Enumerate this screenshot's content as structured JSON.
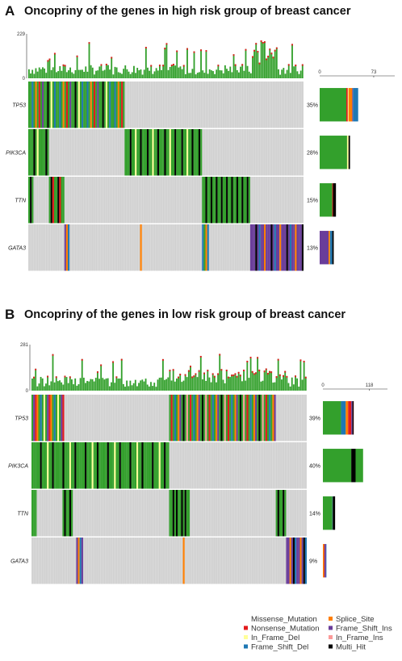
{
  "panels": [
    {
      "letter": "A",
      "title": "Oncopriny of the genes in high risk group of breast cancer"
    },
    {
      "letter": "B",
      "title": "Oncopriny of the genes in low risk group of breast cancer"
    }
  ],
  "chart_data": [
    {
      "type": "oncoprint",
      "panel": "A",
      "title": "Oncopriny of the genes in high risk group of breast cancer",
      "samples": 160,
      "tmb_axis": {
        "min": 0,
        "max": 229,
        "tick_labels": [
          "229",
          "0"
        ]
      },
      "gene_bar_axis": {
        "min": 0,
        "max": 73,
        "tick_labels": [
          "0",
          "73"
        ]
      },
      "genes": [
        {
          "name": "TP53",
          "percent": "35%",
          "runs": [
            {
              "start": 0,
              "length": 56,
              "pattern": [
                "Missense_Mutation",
                "Missense_Mutation",
                "Frame_Shift_Del",
                "Missense_Mutation",
                "Splice_Site",
                "Missense_Mutation",
                "Nonsense_Mutation",
                "Missense_Mutation",
                "Frame_Shift_Ins",
                "Missense_Mutation",
                "Missense_Mutation",
                "Multi_Hit",
                "Missense_Mutation",
                "In_Frame_Del",
                "Missense_Mutation",
                "Frame_Shift_Del"
              ]
            }
          ],
          "side_bar": [
            {
              "type": "Missense_Mutation",
              "count": 36
            },
            {
              "type": "Nonsense_Mutation",
              "count": 2
            },
            {
              "type": "In_Frame_Del",
              "count": 1
            },
            {
              "type": "Splice_Site",
              "count": 5
            },
            {
              "type": "Frame_Shift_Ins",
              "count": 1
            },
            {
              "type": "Frame_Shift_Del",
              "count": 7
            }
          ]
        },
        {
          "name": "PIK3CA",
          "percent": "28%",
          "runs": [
            {
              "start": 0,
              "length": 12,
              "pattern": [
                "Missense_Mutation",
                "Missense_Mutation",
                "Missense_Mutation",
                "Multi_Hit",
                "Missense_Mutation",
                "In_Frame_Del",
                "Missense_Mutation"
              ]
            },
            {
              "start": 56,
              "length": 45,
              "pattern": [
                "Missense_Mutation",
                "Missense_Mutation",
                "Missense_Mutation",
                "Multi_Hit",
                "Missense_Mutation",
                "Missense_Mutation",
                "In_Frame_Del",
                "Missense_Mutation",
                "Missense_Mutation",
                "Multi_Hit"
              ]
            }
          ],
          "side_bar": [
            {
              "type": "Missense_Mutation",
              "count": 37
            },
            {
              "type": "In_Frame_Del",
              "count": 2
            },
            {
              "type": "Multi_Hit",
              "count": 2
            }
          ]
        },
        {
          "name": "TTN",
          "percent": "15%",
          "runs": [
            {
              "start": 0,
              "length": 3,
              "pattern": [
                "Missense_Mutation",
                "Multi_Hit",
                "Missense_Mutation"
              ]
            },
            {
              "start": 12,
              "length": 9,
              "pattern": [
                "Missense_Mutation",
                "Multi_Hit",
                "Nonsense_Mutation",
                "Missense_Mutation"
              ]
            },
            {
              "start": 101,
              "length": 28,
              "pattern": [
                "Missense_Mutation",
                "Missense_Mutation",
                "Multi_Hit",
                "Missense_Mutation",
                "Missense_Mutation",
                "Multi_Hit"
              ]
            }
          ],
          "side_bar": [
            {
              "type": "Missense_Mutation",
              "count": 17
            },
            {
              "type": "Nonsense_Mutation",
              "count": 1
            },
            {
              "type": "Multi_Hit",
              "count": 4
            }
          ]
        },
        {
          "name": "GATA3",
          "percent": "13%",
          "runs": [
            {
              "start": 21,
              "length": 3,
              "pattern": [
                "Frame_Shift_Ins",
                "Splice_Site",
                "Frame_Shift_Del"
              ]
            },
            {
              "start": 65,
              "length": 1,
              "pattern": [
                "Splice_Site"
              ]
            },
            {
              "start": 101,
              "length": 4,
              "pattern": [
                "Frame_Shift_Del",
                "Missense_Mutation",
                "Splice_Site"
              ]
            },
            {
              "start": 129,
              "length": 31,
              "pattern": [
                "Frame_Shift_Ins",
                "Frame_Shift_Ins",
                "Frame_Shift_Ins",
                "Multi_Hit",
                "Frame_Shift_Ins",
                "Frame_Shift_Del",
                "Frame_Shift_Ins",
                "Frame_Shift_Ins",
                "Splice_Site"
              ]
            }
          ],
          "side_bar": [
            {
              "type": "Frame_Shift_Ins",
              "count": 12
            },
            {
              "type": "Splice_Site",
              "count": 2
            },
            {
              "type": "Frame_Shift_Del",
              "count": 3
            },
            {
              "type": "Multi_Hit",
              "count": 2
            }
          ]
        }
      ]
    },
    {
      "type": "oncoprint",
      "panel": "B",
      "title": "Oncopriny of the genes in low risk group of breast cancer",
      "samples": 160,
      "tmb_axis": {
        "min": 0,
        "max": 281,
        "tick_labels": [
          "281",
          "0"
        ]
      },
      "gene_bar_axis": {
        "min": 0,
        "max": 118,
        "tick_labels": [
          "0",
          "118"
        ]
      },
      "genes": [
        {
          "name": "TP53",
          "percent": "39%",
          "runs": [
            {
              "start": 0,
              "length": 19,
              "pattern": [
                "Missense_Mutation",
                "Frame_Shift_Ins",
                "Nonsense_Mutation",
                "Splice_Site",
                "Missense_Mutation",
                "Frame_Shift_Del",
                "Missense_Mutation",
                "In_Frame_Del"
              ]
            },
            {
              "start": 80,
              "length": 62,
              "pattern": [
                "Missense_Mutation",
                "Nonsense_Mutation",
                "Missense_Mutation",
                "Frame_Shift_Del",
                "Missense_Mutation",
                "Splice_Site",
                "Frame_Shift_Ins",
                "Missense_Mutation",
                "Multi_Hit",
                "Missense_Mutation",
                "In_Frame_Ins"
              ]
            }
          ],
          "side_bar": [
            {
              "type": "Missense_Mutation",
              "count": 46
            },
            {
              "type": "Frame_Shift_Del",
              "count": 12
            },
            {
              "type": "Splice_Site",
              "count": 6
            },
            {
              "type": "Nonsense_Mutation",
              "count": 8
            },
            {
              "type": "Frame_Shift_Ins",
              "count": 3
            },
            {
              "type": "Multi_Hit",
              "count": 3
            },
            {
              "type": "In_Frame_Ins",
              "count": 1
            }
          ]
        },
        {
          "name": "PIK3CA",
          "percent": "40%",
          "runs": [
            {
              "start": 0,
              "length": 80,
              "pattern": [
                "Missense_Mutation",
                "Missense_Mutation",
                "Missense_Mutation",
                "Missense_Mutation",
                "Missense_Mutation",
                "Multi_Hit",
                "Missense_Mutation",
                "Missense_Mutation",
                "Missense_Mutation",
                "In_Frame_Del",
                "Missense_Mutation",
                "Missense_Mutation",
                "Multi_Hit"
              ]
            }
          ],
          "side_bar": [
            {
              "type": "Missense_Mutation",
              "count": 72
            },
            {
              "type": "Multi_Hit",
              "count": 11
            },
            {
              "type": "Missense_Mutation",
              "count": 19
            }
          ]
        },
        {
          "name": "TTN",
          "percent": "14%",
          "runs": [
            {
              "start": 0,
              "length": 3,
              "pattern": [
                "Missense_Mutation"
              ]
            },
            {
              "start": 18,
              "length": 6,
              "pattern": [
                "Missense_Mutation",
                "Multi_Hit",
                "Missense_Mutation"
              ]
            },
            {
              "start": 80,
              "length": 12,
              "pattern": [
                "Missense_Mutation",
                "Missense_Mutation",
                "Multi_Hit",
                "Missense_Mutation",
                "Multi_Hit"
              ]
            },
            {
              "start": 142,
              "length": 6,
              "pattern": [
                "Missense_Mutation",
                "Multi_Hit",
                "Missense_Mutation"
              ]
            }
          ],
          "side_bar": [
            {
              "type": "Missense_Mutation",
              "count": 24
            },
            {
              "type": "Frame_Shift_Del",
              "count": 1
            },
            {
              "type": "Multi_Hit",
              "count": 6
            }
          ]
        },
        {
          "name": "GATA3",
          "percent": "9%",
          "runs": [
            {
              "start": 26,
              "length": 4,
              "pattern": [
                "Frame_Shift_Ins",
                "Splice_Site",
                "Frame_Shift_Del",
                "Frame_Shift_Ins"
              ]
            },
            {
              "start": 88,
              "length": 1,
              "pattern": [
                "Splice_Site"
              ]
            },
            {
              "start": 148,
              "length": 12,
              "pattern": [
                "Frame_Shift_Ins",
                "Frame_Shift_Ins",
                "Splice_Site",
                "Frame_Shift_Ins",
                "Multi_Hit",
                "Frame_Shift_Del"
              ]
            }
          ],
          "side_bar": [
            {
              "type": "Splice_Site",
              "count": 3
            },
            {
              "type": "Nonsense_Mutation",
              "count": 1
            },
            {
              "type": "Frame_Shift_Ins",
              "count": 4
            },
            {
              "type": "Frame_Shift_Del",
              "count": 1
            }
          ]
        }
      ]
    }
  ],
  "legend": {
    "items": [
      {
        "label": "Missense_Mutation",
        "color": "#33a02c"
      },
      {
        "label": "Nonsense_Mutation",
        "color": "#e31a1c"
      },
      {
        "label": "In_Frame_Del",
        "color": "#ffff99"
      },
      {
        "label": "Frame_Shift_Del",
        "color": "#1f78b4"
      },
      {
        "label": "Splice_Site",
        "color": "#ff7f00"
      },
      {
        "label": "Frame_Shift_Ins",
        "color": "#6a3d9a"
      },
      {
        "label": "In_Frame_Ins",
        "color": "#fb9a99"
      },
      {
        "label": "Multi_Hit",
        "color": "#000000"
      }
    ]
  },
  "colors": {
    "background_cell": "#cfcfcf",
    "missense": "#33a02c",
    "nonsense": "#e31a1c",
    "in_frame_del": "#ffff99",
    "frame_shift_del": "#1f78b4",
    "splice_site": "#ff7f00",
    "frame_shift_ins": "#6a3d9a",
    "in_frame_ins": "#fb9a99",
    "multi_hit": "#000000"
  }
}
